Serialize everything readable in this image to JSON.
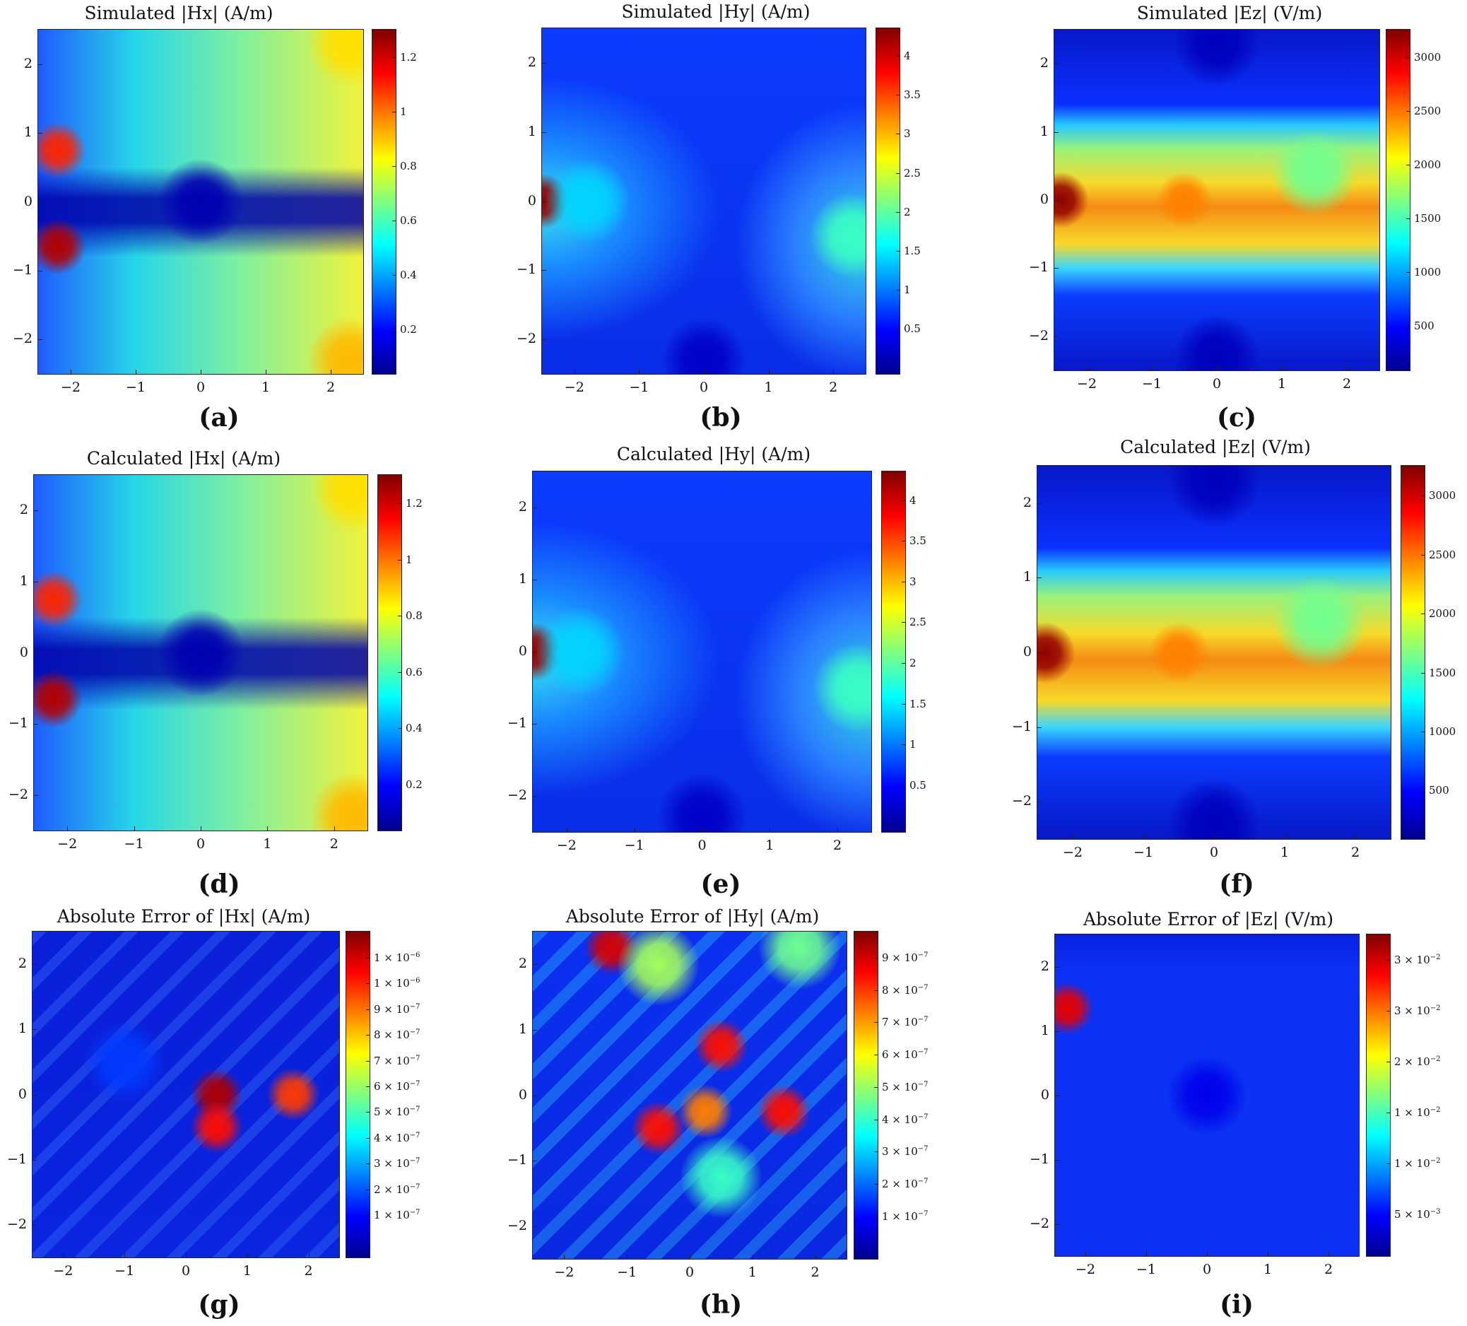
{
  "figure": {
    "panels": [
      {
        "id": "a",
        "label": "(a)",
        "title": "Simulated |Hx| (A/m)"
      },
      {
        "id": "b",
        "label": "(b)",
        "title": "Simulated |Hy| (A/m)"
      },
      {
        "id": "c",
        "label": "(c)",
        "title": "Simulated |Ez| (V/m)"
      },
      {
        "id": "d",
        "label": "(d)",
        "title": "Calculated |Hx| (A/m)"
      },
      {
        "id": "e",
        "label": "(e)",
        "title": "Calculated |Hy| (A/m)"
      },
      {
        "id": "f",
        "label": "(f)",
        "title": "Calculated |Ez| (V/m)"
      },
      {
        "id": "g",
        "label": "(g)",
        "title": "Absolute Error of |Hx| (A/m)"
      },
      {
        "id": "h",
        "label": "(h)",
        "title": "Absolute Error of |Hy| (A/m)"
      },
      {
        "id": "i",
        "label": "(i)",
        "title": "Absolute Error of |Ez| (V/m)"
      }
    ]
  },
  "chart_data": [
    {
      "type": "heatmap",
      "panel": "a",
      "title": "Simulated |Hx| (A/m)",
      "xlabel": "",
      "ylabel": "",
      "xlim": [
        -2.5,
        2.5
      ],
      "ylim": [
        -2.5,
        2.5
      ],
      "xticks": [
        "−2",
        "−1",
        "0",
        "1",
        "2"
      ],
      "yticks": [
        "2",
        "1",
        "0",
        "−1",
        "−2"
      ],
      "colormap": "jet",
      "colorbar_range": [
        0,
        1.37
      ],
      "colorbar_ticks": [
        "1.2",
        "1",
        "0.8",
        "0.6",
        "0.4",
        "0.2"
      ],
      "features": [
        {
          "x": -2.2,
          "y": 0.75,
          "value": 1.15
        },
        {
          "x": -2.2,
          "y": -0.65,
          "value": 1.3
        },
        {
          "x": 0,
          "y": 0,
          "value": 0.05
        },
        {
          "x": 2.3,
          "y": 2.3,
          "value": 0.9
        },
        {
          "x": 2.3,
          "y": -2.3,
          "value": 0.95
        }
      ]
    },
    {
      "type": "heatmap",
      "panel": "b",
      "title": "Simulated |Hy| (A/m)",
      "xlabel": "",
      "ylabel": "",
      "xlim": [
        -2.5,
        2.5
      ],
      "ylim": [
        -2.5,
        2.5
      ],
      "xticks": [
        "−2",
        "−1",
        "0",
        "1",
        "2"
      ],
      "yticks": [
        "2",
        "1",
        "0",
        "−1",
        "−2"
      ],
      "colormap": "jet",
      "colorbar_range": [
        0.05,
        4.1
      ],
      "colorbar_ticks": [
        "4",
        "3.5",
        "3",
        "2.5",
        "2",
        "1.5",
        "1",
        "0.5"
      ],
      "features": [
        {
          "x": -2.5,
          "y": 0,
          "value": 4.0
        },
        {
          "x": -1.8,
          "y": 0,
          "value": 1.4
        },
        {
          "x": 2.3,
          "y": -0.5,
          "value": 1.8
        },
        {
          "x": 0,
          "y": -2.3,
          "value": 0.3
        }
      ]
    },
    {
      "type": "heatmap",
      "panel": "c",
      "title": "Simulated |Ez| (V/m)",
      "xlabel": "",
      "ylabel": "",
      "xlim": [
        -2.5,
        2.5
      ],
      "ylim": [
        -2.5,
        2.5
      ],
      "xticks": [
        "−2",
        "−1",
        "0",
        "1",
        "2"
      ],
      "yticks": [
        "2",
        "1",
        "0",
        "−1",
        "−2"
      ],
      "colormap": "jet",
      "colorbar_range": [
        50,
        3050
      ],
      "colorbar_ticks": [
        "3000",
        "2500",
        "2000",
        "1500",
        "1000",
        "500"
      ],
      "features": [
        {
          "x": -2.4,
          "y": 0,
          "value": 3000
        },
        {
          "x": -0.5,
          "y": 0,
          "value": 2300
        },
        {
          "x": 1.5,
          "y": 0.4,
          "value": 1500
        },
        {
          "x": 0,
          "y": 2.3,
          "value": 200
        },
        {
          "x": 0,
          "y": -2.3,
          "value": 200
        }
      ]
    },
    {
      "type": "heatmap",
      "panel": "d",
      "title": "Calculated |Hx| (A/m)",
      "xlabel": "",
      "ylabel": "",
      "xlim": [
        -2.5,
        2.5
      ],
      "ylim": [
        -2.5,
        2.5
      ],
      "xticks": [
        "−2",
        "−1",
        "0",
        "1",
        "2"
      ],
      "yticks": [
        "2",
        "1",
        "0",
        "−1",
        "−2"
      ],
      "colormap": "jet",
      "colorbar_range": [
        0,
        1.37
      ],
      "colorbar_ticks": [
        "1.2",
        "1",
        "0.8",
        "0.6",
        "0.4",
        "0.2"
      ],
      "features": [
        {
          "x": -2.2,
          "y": 0.75,
          "value": 1.15
        },
        {
          "x": -2.2,
          "y": -0.65,
          "value": 1.3
        },
        {
          "x": 0,
          "y": 0,
          "value": 0.05
        },
        {
          "x": 2.3,
          "y": 2.3,
          "value": 0.9
        },
        {
          "x": 2.3,
          "y": -2.3,
          "value": 0.95
        }
      ]
    },
    {
      "type": "heatmap",
      "panel": "e",
      "title": "Calculated |Hy| (A/m)",
      "xlabel": "",
      "ylabel": "",
      "xlim": [
        -2.5,
        2.5
      ],
      "ylim": [
        -2.5,
        2.5
      ],
      "xticks": [
        "−2",
        "−1",
        "0",
        "1",
        "2"
      ],
      "yticks": [
        "2",
        "1",
        "0",
        "−1",
        "−2"
      ],
      "colormap": "jet",
      "colorbar_range": [
        0.05,
        4.1
      ],
      "colorbar_ticks": [
        "4",
        "3.5",
        "3",
        "2.5",
        "2",
        "1.5",
        "1",
        "0.5"
      ],
      "features": [
        {
          "x": -2.5,
          "y": 0,
          "value": 4.0
        },
        {
          "x": -1.8,
          "y": 0,
          "value": 1.4
        },
        {
          "x": 2.3,
          "y": -0.5,
          "value": 1.8
        },
        {
          "x": 0,
          "y": -2.3,
          "value": 0.3
        }
      ]
    },
    {
      "type": "heatmap",
      "panel": "f",
      "title": "Calculated |Ez| (V/m)",
      "xlabel": "",
      "ylabel": "",
      "xlim": [
        -2.5,
        2.5
      ],
      "ylim": [
        -2.5,
        2.5
      ],
      "xticks": [
        "−2",
        "−1",
        "0",
        "1",
        "2"
      ],
      "yticks": [
        "2",
        "1",
        "0",
        "−1",
        "−2"
      ],
      "colormap": "jet",
      "colorbar_range": [
        50,
        3050
      ],
      "colorbar_ticks": [
        "3000",
        "2500",
        "2000",
        "1500",
        "1000",
        "500"
      ],
      "features": [
        {
          "x": -2.4,
          "y": 0,
          "value": 3000
        },
        {
          "x": -0.5,
          "y": 0,
          "value": 2300
        },
        {
          "x": 1.5,
          "y": 0.4,
          "value": 1500
        },
        {
          "x": 0,
          "y": 2.3,
          "value": 200
        },
        {
          "x": 0,
          "y": -2.3,
          "value": 200
        }
      ]
    },
    {
      "type": "heatmap",
      "panel": "g",
      "title": "Absolute Error of |Hx| (A/m)",
      "xlabel": "",
      "ylabel": "",
      "xlim": [
        -2.5,
        2.5
      ],
      "ylim": [
        -2.5,
        2.5
      ],
      "xticks": [
        "−2",
        "−1",
        "0",
        "1",
        "2"
      ],
      "yticks": [
        "2",
        "1",
        "0",
        "−1",
        "−2"
      ],
      "colormap": "jet",
      "colorbar_range": [
        0,
        1.1e-06
      ],
      "colorbar_ticks": [
        {
          "m": "1",
          "e": "−6"
        },
        {
          "m": "1",
          "e": "−6"
        },
        {
          "m": "9",
          "e": "−7"
        },
        {
          "m": "8",
          "e": "−7"
        },
        {
          "m": "7",
          "e": "−7"
        },
        {
          "m": "6",
          "e": "−7"
        },
        {
          "m": "5",
          "e": "−7"
        },
        {
          "m": "4",
          "e": "−7"
        },
        {
          "m": "3",
          "e": "−7"
        },
        {
          "m": "2",
          "e": "−7"
        },
        {
          "m": "1",
          "e": "−7"
        }
      ],
      "features": [
        {
          "x": 0.5,
          "y": 0.0,
          "value": 1.05e-06
        },
        {
          "x": 0.5,
          "y": -0.5,
          "value": 9.5e-07
        },
        {
          "x": 1.75,
          "y": 0.0,
          "value": 9e-07
        },
        {
          "x": -1.0,
          "y": 0.5,
          "value": 2e-07
        }
      ]
    },
    {
      "type": "heatmap",
      "panel": "h",
      "title": "Absolute Error of |Hy| (A/m)",
      "xlabel": "",
      "ylabel": "",
      "xlim": [
        -2.5,
        2.5
      ],
      "ylim": [
        -2.5,
        2.5
      ],
      "xticks": [
        "−2",
        "−1",
        "0",
        "1",
        "2"
      ],
      "yticks": [
        "2",
        "1",
        "0",
        "−1",
        "−2"
      ],
      "colormap": "jet",
      "colorbar_range": [
        0,
        9.3e-07
      ],
      "colorbar_ticks": [
        {
          "m": "9",
          "e": "−7"
        },
        {
          "m": "8",
          "e": "−7"
        },
        {
          "m": "7",
          "e": "−7"
        },
        {
          "m": "6",
          "e": "−7"
        },
        {
          "m": "5",
          "e": "−7"
        },
        {
          "m": "4",
          "e": "−7"
        },
        {
          "m": "3",
          "e": "−7"
        },
        {
          "m": "2",
          "e": "−7"
        },
        {
          "m": "1",
          "e": "−7"
        }
      ],
      "features": [
        {
          "x": -1.25,
          "y": 2.25,
          "value": 8.5e-07
        },
        {
          "x": 0.5,
          "y": 0.75,
          "value": 8e-07
        },
        {
          "x": 1.5,
          "y": -0.25,
          "value": 8e-07
        },
        {
          "x": -0.5,
          "y": -0.5,
          "value": 8e-07
        },
        {
          "x": 0.25,
          "y": -0.25,
          "value": 7e-07
        },
        {
          "x": -0.5,
          "y": 2.0,
          "value": 5e-07
        },
        {
          "x": 1.75,
          "y": 2.25,
          "value": 4.5e-07
        },
        {
          "x": 0.5,
          "y": -1.25,
          "value": 4e-07
        }
      ]
    },
    {
      "type": "heatmap",
      "panel": "i",
      "title": "Absolute Error of |Ez| (V/m)",
      "xlabel": "",
      "ylabel": "",
      "xlim": [
        -2.5,
        2.5
      ],
      "ylim": [
        -2.5,
        2.5
      ],
      "xticks": [
        "−2",
        "−1",
        "0",
        "1",
        "2"
      ],
      "yticks": [
        "2",
        "1",
        "0",
        "−1",
        "−2"
      ],
      "colormap": "jet",
      "colorbar_range": [
        0,
        0.039
      ],
      "colorbar_ticks": [
        {
          "m": "3",
          "e": "−2"
        },
        {
          "m": "3",
          "e": "−2"
        },
        {
          "m": "2",
          "e": "−2"
        },
        {
          "m": "1",
          "e": "−2"
        },
        {
          "m": "1",
          "e": "−2"
        },
        {
          "m": "5",
          "e": "−3"
        }
      ],
      "features": [
        {
          "x": -2.3,
          "y": 1.35,
          "value": 0.035
        },
        {
          "x": 0,
          "y": 0,
          "value": 0.004
        }
      ]
    }
  ]
}
